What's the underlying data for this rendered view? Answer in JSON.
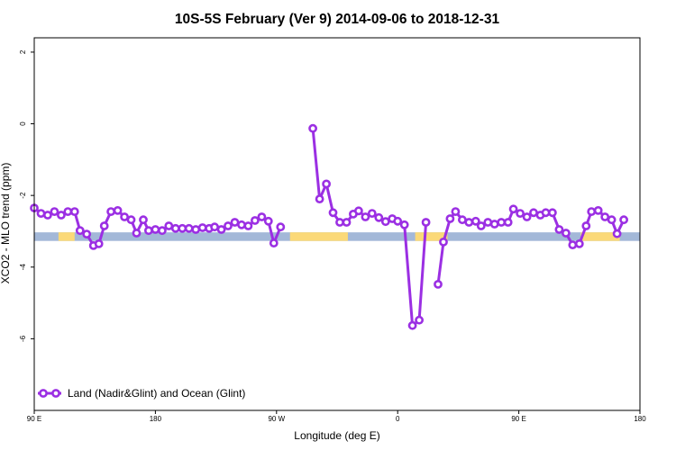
{
  "chart_data": {
    "type": "line",
    "title": "10S-5S February (Ver 9)   2014-09-06 to 2018-12-31",
    "xlabel": "Longitude (deg E)",
    "ylabel": "XCO2 - MLO trend (ppm)",
    "x_ticks": [
      {
        "value": 90,
        "label": "90 E"
      },
      {
        "value": 180,
        "label": "180"
      },
      {
        "value": 270,
        "label": "90 W"
      },
      {
        "value": 360,
        "label": "0"
      },
      {
        "value": 450,
        "label": "90 E"
      },
      {
        "value": 540,
        "label": "180"
      }
    ],
    "y_ticks": [
      {
        "value": 2,
        "label": "2"
      },
      {
        "value": 0,
        "label": "0"
      },
      {
        "value": -2,
        "label": "-2"
      },
      {
        "value": -4,
        "label": "-4"
      },
      {
        "value": -6,
        "label": "-6"
      }
    ],
    "xlim": [
      90,
      540
    ],
    "ylim": [
      -8,
      2.4
    ],
    "grid": false,
    "legend_position": "bottom-left",
    "background_band": {
      "y_range": [
        -3.27,
        -3.03
      ],
      "ocean_color": "#a3b8d8",
      "land_color": "#fbd978",
      "land_x_ranges": [
        [
          108,
          120
        ],
        [
          280,
          323
        ],
        [
          373,
          397
        ],
        [
          496,
          525
        ]
      ]
    },
    "series": [
      {
        "name": "Land (Nadir&Glint) and Ocean (Glint)",
        "color": "#9b2fe3",
        "segments": [
          [
            [
              90,
              -2.35
            ],
            [
              95,
              -2.5
            ],
            [
              100,
              -2.55
            ],
            [
              105,
              -2.45
            ],
            [
              110,
              -2.55
            ],
            [
              115,
              -2.45
            ],
            [
              120,
              -2.45
            ],
            [
              124,
              -2.98
            ],
            [
              129,
              -3.08
            ],
            [
              134,
              -3.4
            ],
            [
              138,
              -3.35
            ],
            [
              142,
              -2.85
            ],
            [
              147,
              -2.45
            ],
            [
              152,
              -2.42
            ],
            [
              157,
              -2.6
            ],
            [
              162,
              -2.68
            ],
            [
              166,
              -3.05
            ],
            [
              171,
              -2.68
            ],
            [
              175,
              -2.98
            ],
            [
              180,
              -2.95
            ],
            [
              185,
              -2.98
            ],
            [
              190,
              -2.85
            ],
            [
              195,
              -2.92
            ],
            [
              200,
              -2.92
            ],
            [
              205,
              -2.92
            ],
            [
              210,
              -2.95
            ],
            [
              215,
              -2.9
            ],
            [
              220,
              -2.92
            ],
            [
              224,
              -2.88
            ],
            [
              229,
              -2.95
            ],
            [
              234,
              -2.85
            ],
            [
              239,
              -2.75
            ],
            [
              244,
              -2.82
            ],
            [
              249,
              -2.85
            ],
            [
              254,
              -2.7
            ],
            [
              259,
              -2.6
            ],
            [
              264,
              -2.72
            ],
            [
              268,
              -3.33
            ],
            [
              273,
              -2.88
            ]
          ],
          [
            [
              297,
              -0.13
            ],
            [
              302,
              -2.1
            ],
            [
              307,
              -1.68
            ],
            [
              312,
              -2.48
            ],
            [
              317,
              -2.75
            ],
            [
              322,
              -2.75
            ],
            [
              327,
              -2.52
            ],
            [
              331,
              -2.43
            ],
            [
              336,
              -2.6
            ],
            [
              341,
              -2.5
            ],
            [
              346,
              -2.62
            ],
            [
              351,
              -2.73
            ],
            [
              356,
              -2.65
            ],
            [
              360,
              -2.72
            ],
            [
              365,
              -2.82
            ],
            [
              371,
              -5.63
            ],
            [
              376,
              -5.48
            ],
            [
              381,
              -2.75
            ]
          ],
          [
            [
              390,
              -4.48
            ],
            [
              394,
              -3.3
            ],
            [
              399,
              -2.65
            ],
            [
              403,
              -2.45
            ],
            [
              408,
              -2.68
            ],
            [
              413,
              -2.75
            ],
            [
              418,
              -2.72
            ],
            [
              422,
              -2.85
            ],
            [
              427,
              -2.75
            ],
            [
              432,
              -2.8
            ],
            [
              437,
              -2.75
            ],
            [
              442,
              -2.75
            ],
            [
              446,
              -2.38
            ],
            [
              451,
              -2.5
            ],
            [
              456,
              -2.6
            ],
            [
              461,
              -2.48
            ],
            [
              466,
              -2.55
            ],
            [
              470,
              -2.48
            ],
            [
              475,
              -2.48
            ],
            [
              480,
              -2.95
            ],
            [
              485,
              -3.05
            ],
            [
              490,
              -3.38
            ],
            [
              495,
              -3.35
            ],
            [
              500,
              -2.85
            ],
            [
              504,
              -2.45
            ],
            [
              509,
              -2.42
            ],
            [
              514,
              -2.6
            ],
            [
              519,
              -2.68
            ],
            [
              523,
              -3.07
            ],
            [
              528,
              -2.68
            ]
          ]
        ]
      }
    ]
  }
}
